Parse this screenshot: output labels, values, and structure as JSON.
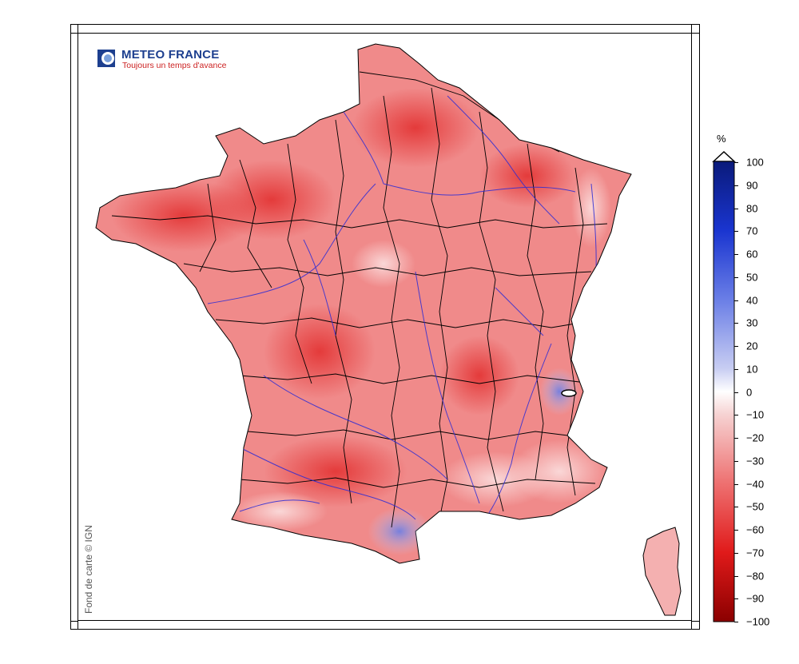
{
  "logo": {
    "title": "METEO FRANCE",
    "tagline": "Toujours un temps d'avance"
  },
  "credit": "Fond de carte © IGN",
  "legend": {
    "unit": "%",
    "labels": [
      "100",
      "90",
      "80",
      "70",
      "60",
      "50",
      "40",
      "30",
      "20",
      "10",
      "0",
      "−10",
      "−20",
      "−30",
      "−40",
      "−50",
      "−60",
      "−70",
      "−80",
      "−90",
      "−100"
    ],
    "colors": {
      "top": "#0a1a7a",
      "mid": "#ffffff",
      "bottom": "#8b0000"
    }
  },
  "map": {
    "land_color_dominant": "#f08080",
    "sea_color": "#ffffff",
    "river_color": "#2b2bd6",
    "border_color": "#000000"
  }
}
